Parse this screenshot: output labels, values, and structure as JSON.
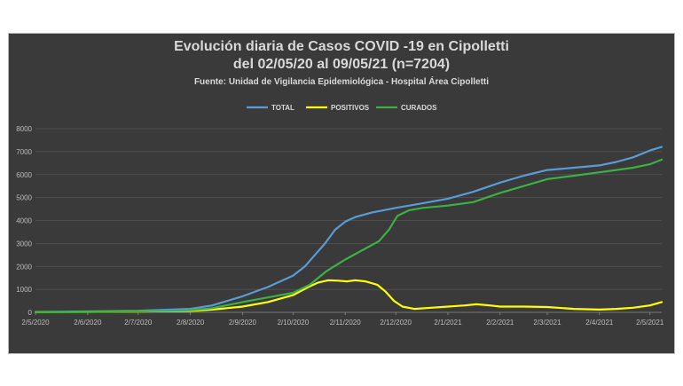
{
  "chart_data": {
    "type": "line",
    "title": "Evolución diaria de Casos COVID -19 en Cipolletti",
    "subtitle": "del 02/05/20 al 09/05/21  (n=7204)",
    "source": "Fuente: Unidad de Vigilancia Epidemiológica - Hospital Área Cipolletti",
    "xlabel": "",
    "ylabel": "",
    "ylim": [
      0,
      8000
    ],
    "yticks": [
      0,
      1000,
      2000,
      3000,
      4000,
      5000,
      6000,
      7000,
      8000
    ],
    "xlim": [
      0,
      372
    ],
    "xticks": [
      {
        "label": "2/5/2020",
        "day": 0
      },
      {
        "label": "2/6/2020",
        "day": 31
      },
      {
        "label": "2/7/2020",
        "day": 61
      },
      {
        "label": "2/8/2020",
        "day": 92
      },
      {
        "label": "2/9/2020",
        "day": 123
      },
      {
        "label": "2/10/2020",
        "day": 153
      },
      {
        "label": "2/11/2020",
        "day": 184
      },
      {
        "label": "2/12/2020",
        "day": 214
      },
      {
        "label": "2/1/2021",
        "day": 245
      },
      {
        "label": "2/2/2021",
        "day": 276
      },
      {
        "label": "2/3/2021",
        "day": 304
      },
      {
        "label": "2/4/2021",
        "day": 335
      },
      {
        "label": "2/5/2021",
        "day": 365
      }
    ],
    "legend_position": "top",
    "grid": "horizontal",
    "colors": {
      "background": "#3a3a3a",
      "grid": "#555555",
      "text": "#d9d9d9"
    },
    "series": [
      {
        "name": "TOTAL",
        "color": "#5b9bd5",
        "points": [
          [
            0,
            20
          ],
          [
            30,
            40
          ],
          [
            61,
            70
          ],
          [
            92,
            150
          ],
          [
            105,
            300
          ],
          [
            123,
            700
          ],
          [
            138,
            1100
          ],
          [
            153,
            1600
          ],
          [
            160,
            2000
          ],
          [
            166,
            2500
          ],
          [
            172,
            3000
          ],
          [
            178,
            3600
          ],
          [
            184,
            3950
          ],
          [
            190,
            4150
          ],
          [
            200,
            4350
          ],
          [
            214,
            4550
          ],
          [
            230,
            4750
          ],
          [
            245,
            4950
          ],
          [
            260,
            5250
          ],
          [
            276,
            5650
          ],
          [
            290,
            5950
          ],
          [
            304,
            6200
          ],
          [
            320,
            6300
          ],
          [
            335,
            6400
          ],
          [
            345,
            6550
          ],
          [
            355,
            6750
          ],
          [
            365,
            7050
          ],
          [
            372,
            7204
          ]
        ]
      },
      {
        "name": "POSITIVOS",
        "color": "#ffff00",
        "points": [
          [
            0,
            10
          ],
          [
            30,
            20
          ],
          [
            61,
            30
          ],
          [
            92,
            60
          ],
          [
            105,
            120
          ],
          [
            123,
            250
          ],
          [
            138,
            450
          ],
          [
            153,
            750
          ],
          [
            162,
            1100
          ],
          [
            168,
            1300
          ],
          [
            174,
            1400
          ],
          [
            180,
            1380
          ],
          [
            185,
            1350
          ],
          [
            190,
            1400
          ],
          [
            196,
            1350
          ],
          [
            203,
            1200
          ],
          [
            208,
            900
          ],
          [
            213,
            500
          ],
          [
            218,
            250
          ],
          [
            225,
            150
          ],
          [
            235,
            200
          ],
          [
            245,
            250
          ],
          [
            255,
            300
          ],
          [
            262,
            350
          ],
          [
            270,
            300
          ],
          [
            276,
            250
          ],
          [
            290,
            250
          ],
          [
            304,
            230
          ],
          [
            320,
            150
          ],
          [
            335,
            120
          ],
          [
            345,
            150
          ],
          [
            355,
            200
          ],
          [
            365,
            300
          ],
          [
            372,
            450
          ]
        ]
      },
      {
        "name": "CURADOS",
        "color": "#3cb043",
        "points": [
          [
            0,
            10
          ],
          [
            30,
            20
          ],
          [
            61,
            40
          ],
          [
            92,
            90
          ],
          [
            105,
            180
          ],
          [
            123,
            450
          ],
          [
            138,
            650
          ],
          [
            153,
            850
          ],
          [
            163,
            1200
          ],
          [
            173,
            1800
          ],
          [
            184,
            2300
          ],
          [
            194,
            2700
          ],
          [
            204,
            3100
          ],
          [
            210,
            3600
          ],
          [
            215,
            4200
          ],
          [
            222,
            4450
          ],
          [
            230,
            4550
          ],
          [
            245,
            4650
          ],
          [
            260,
            4800
          ],
          [
            276,
            5200
          ],
          [
            290,
            5500
          ],
          [
            304,
            5800
          ],
          [
            320,
            5950
          ],
          [
            335,
            6100
          ],
          [
            345,
            6200
          ],
          [
            355,
            6300
          ],
          [
            365,
            6450
          ],
          [
            372,
            6650
          ]
        ]
      }
    ]
  }
}
